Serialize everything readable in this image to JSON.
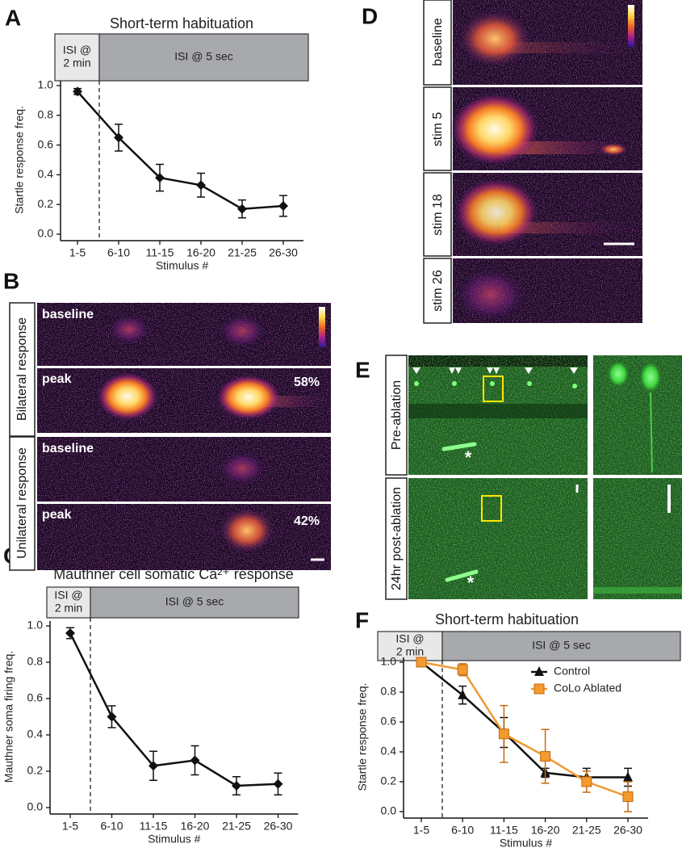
{
  "panel_labels": [
    "A",
    "B",
    "C",
    "D",
    "E",
    "F"
  ],
  "chart_data": [
    {
      "type": "line",
      "title": "Short-term habituation",
      "phases": [
        [
          "ISI @",
          "2 min"
        ],
        [
          "ISI @ 5 sec"
        ]
      ],
      "x_label": "Stimulus #",
      "y_label": "Startle response freq.",
      "categories": [
        "1-5",
        "6-10",
        "11-15",
        "16-20",
        "21-25",
        "26-30"
      ],
      "series": [
        {
          "color": "#111111",
          "marker": "diamond",
          "values": [
            0.96,
            0.65,
            0.38,
            0.33,
            0.17,
            0.19
          ],
          "errors": [
            0.02,
            0.09,
            0.09,
            0.08,
            0.06,
            0.07
          ]
        }
      ],
      "ylim": [
        0,
        1
      ],
      "yticks": [
        {
          "value": 0,
          "label": "0.0"
        },
        0.2,
        0.4,
        0.6,
        0.8,
        {
          "value": 1,
          "label": "1.0"
        }
      ]
    },
    {
      "type": "line",
      "title": "Mauthner cell somatic Ca²⁺ response",
      "phases": [
        [
          "ISI @",
          "2 min"
        ],
        [
          "ISI @ 5 sec"
        ]
      ],
      "x_label": "Stimulus #",
      "y_label": "Mauthner soma firing freq.",
      "categories": [
        "1-5",
        "6-10",
        "11-15",
        "16-20",
        "21-25",
        "26-30"
      ],
      "series": [
        {
          "color": "#111111",
          "marker": "diamond",
          "values": [
            0.96,
            0.5,
            0.23,
            0.26,
            0.12,
            0.13
          ],
          "errors": [
            0.03,
            0.06,
            0.08,
            0.08,
            0.05,
            0.06
          ]
        }
      ],
      "ylim": [
        0,
        1
      ],
      "yticks": [
        {
          "value": 0,
          "label": "0.0"
        },
        0.2,
        0.4,
        0.6,
        0.8,
        {
          "value": 1,
          "label": "1.0"
        }
      ]
    },
    {
      "type": "line",
      "title": "Short-term habituation",
      "phases": [
        [
          "ISI @",
          "2 min"
        ],
        [
          "ISI @ 5 sec"
        ]
      ],
      "x_label": "Stimulus #",
      "y_label": "Startle response freq.",
      "categories": [
        "1-5",
        "6-10",
        "11-15",
        "16-20",
        "21-25",
        "26-30"
      ],
      "legend": "upper right",
      "series": [
        {
          "name": "Control",
          "color": "#111111",
          "marker": "triangle",
          "values": [
            1.0,
            0.78,
            0.53,
            0.26,
            0.23,
            0.23
          ],
          "errors": [
            0.0,
            0.06,
            0.1,
            0.03,
            0.06,
            0.06
          ]
        },
        {
          "name": "CoLo Ablated",
          "color": "#f29a2e",
          "marker": "square",
          "values": [
            1.0,
            0.95,
            0.52,
            0.37,
            0.2,
            0.1
          ],
          "errors": [
            0.0,
            0.04,
            0.19,
            0.18,
            0.07,
            0.1
          ]
        }
      ],
      "ylim": [
        0,
        1
      ],
      "yticks": [
        {
          "value": 0,
          "label": "0.0"
        },
        0.2,
        0.4,
        0.6,
        0.8,
        {
          "value": 1,
          "label": "1.0"
        }
      ]
    }
  ],
  "panel_B": {
    "groups": [
      "Bilateral response",
      "Unilateral response"
    ],
    "rows": [
      {
        "label": "baseline"
      },
      {
        "label": "peak",
        "percent": "58%"
      },
      {
        "label": "baseline"
      },
      {
        "label": "peak",
        "percent": "42%"
      }
    ]
  },
  "panel_D": {
    "rows": [
      "baseline",
      "stim 5",
      "stim 18",
      "stim 26"
    ]
  },
  "panel_E": {
    "rows": [
      "Pre-ablation",
      "24hr post-ablation"
    ],
    "asterisks": [
      "*",
      "*"
    ]
  }
}
